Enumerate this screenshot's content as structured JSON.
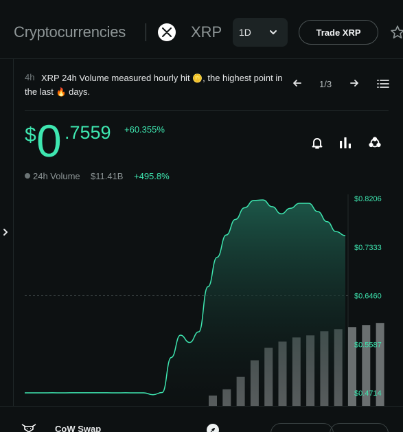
{
  "header": {
    "breadcrumb_root": "Cryptocurrencies",
    "coin_name": "XRP",
    "timeframe": "1D",
    "trade_button": "Trade XRP"
  },
  "insight": {
    "age": "4h",
    "text": "XRP 24h Volume measured hourly hit 🪙, the highest point in the last 🔥 days.",
    "text_before": "XRP 24h Volume measured hourly hit ",
    "emoji_coin": "🪙",
    "text_middle": ", the highest point in the last ",
    "emoji_fire": "🔥",
    "text_after": " days.",
    "page_indicator": "1/3"
  },
  "price": {
    "currency": "$",
    "integer": "0",
    "decimals": ".7559",
    "change": "+60.355%"
  },
  "volume": {
    "label": "24h Volume",
    "value": "$11.41B",
    "change": "+495.8%"
  },
  "chart_data": {
    "type": "area",
    "y_tick_labels": [
      "$0.8206",
      "$0.7333",
      "$0.6460",
      "$0.5587",
      "$0.4714"
    ],
    "y_ticks": [
      0.8206,
      0.7333,
      0.646,
      0.5587,
      0.4714
    ],
    "ylim": [
      0.4714,
      0.8206
    ],
    "reference_line": 0.646,
    "price_series": [
      0.4714,
      0.4714,
      0.4714,
      0.4715,
      0.4714,
      0.4715,
      0.4716,
      0.4715,
      0.4716,
      0.4715,
      0.4714,
      0.4715,
      0.4714,
      0.4714,
      0.468,
      0.472,
      0.535,
      0.575,
      0.562,
      0.581,
      0.662,
      0.715,
      0.755,
      0.783,
      0.804,
      0.817,
      0.818,
      0.806,
      0.793,
      0.803,
      0.812,
      0.812,
      0.797,
      0.779,
      0.761,
      0.754
    ],
    "volume_bars": [
      0.05,
      0.08,
      0.14,
      0.22,
      0.28,
      0.31,
      0.33,
      0.34,
      0.36,
      0.37,
      0.38,
      0.39,
      0.4
    ],
    "colors": {
      "line": "#3ee6b0",
      "area_top": "#1d5a4b",
      "bars": "#6a6f70"
    }
  },
  "dex": {
    "name": "CoW Swap"
  },
  "colors": {
    "accent": "#3ee6b0",
    "background": "#0d1112"
  }
}
